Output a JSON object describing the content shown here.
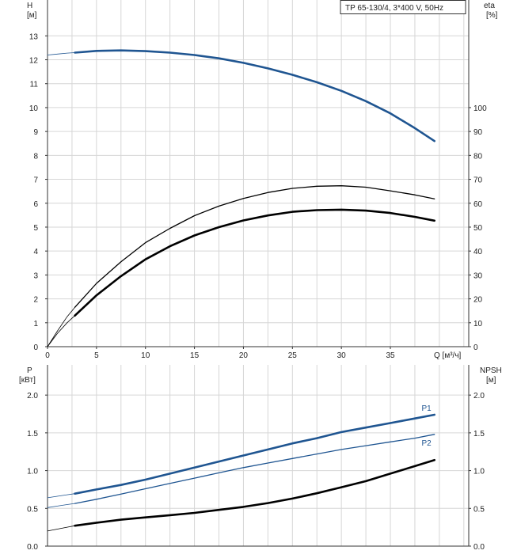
{
  "colors": {
    "blue": "#1f5591",
    "black": "#000000",
    "grid": "#d6d6d6",
    "axis": "#333333"
  },
  "chart_data": [
    {
      "type": "line",
      "title": "TP 65-130/4, 3*400 V, 50Hz",
      "xlabel": "Q [м³/ч]",
      "ylabel_top": "H",
      "ylabel_unit": "[м]",
      "y2label_top": "eta",
      "y2label_unit": "[%]",
      "xlim": [
        0,
        43
      ],
      "ylim": [
        0,
        14.5
      ],
      "y2lim": [
        0,
        145
      ],
      "x_ticks": [
        "0",
        "5",
        "10",
        "15",
        "20",
        "25",
        "30",
        "35"
      ],
      "y_ticks": [
        "0",
        "1",
        "2",
        "3",
        "4",
        "5",
        "6",
        "7",
        "8",
        "9",
        "10",
        "11",
        "12",
        "13"
      ],
      "y2_ticks": [
        "0",
        "10",
        "20",
        "30",
        "40",
        "50",
        "60",
        "70",
        "80",
        "90",
        "100"
      ],
      "grid": true,
      "series": [
        {
          "name": "",
          "color": "#1f5591",
          "axis": "left",
          "x": [
            0,
            1,
            2,
            2.8
          ],
          "y": [
            12.2,
            12.24,
            12.28,
            12.3
          ]
        },
        {
          "name": "",
          "color": "#1f5591",
          "axis": "left",
          "bold": true,
          "x": [
            2.8,
            5,
            7.5,
            10,
            12.5,
            15,
            17.5,
            20,
            22.5,
            25,
            27.5,
            30,
            32.5,
            35,
            37.5,
            39.5
          ],
          "y": [
            12.3,
            12.37,
            12.39,
            12.36,
            12.3,
            12.2,
            12.06,
            11.87,
            11.64,
            11.37,
            11.06,
            10.7,
            10.27,
            9.76,
            9.14,
            8.6
          ]
        },
        {
          "name": "",
          "color": "#000000",
          "axis": "right",
          "x": [
            0,
            1,
            2,
            2.8
          ],
          "y": [
            0,
            6.5,
            12.5,
            16.5
          ]
        },
        {
          "name": "",
          "color": "#000000",
          "axis": "right",
          "bold": false,
          "x": [
            2.8,
            5,
            7.5,
            10,
            12.5,
            15,
            17.5,
            20,
            22.5,
            25,
            27.5,
            30,
            32.5,
            35,
            37.5,
            39.5
          ],
          "y": [
            16.5,
            26.5,
            35.5,
            43.5,
            49.5,
            54.8,
            58.8,
            62,
            64.5,
            66.2,
            67.1,
            67.3,
            66.7,
            65.2,
            63.5,
            61.8
          ]
        },
        {
          "name": "",
          "color": "#000000",
          "axis": "right",
          "x": [
            0,
            1,
            2,
            2.8
          ],
          "y": [
            0,
            5.5,
            10,
            13
          ]
        },
        {
          "name": "",
          "color": "#000000",
          "axis": "right",
          "bold": true,
          "x": [
            2.8,
            5,
            7.5,
            10,
            12.5,
            15,
            17.5,
            20,
            22.5,
            25,
            27.5,
            30,
            32.5,
            35,
            37.5,
            39.5
          ],
          "y": [
            13,
            21.5,
            29.5,
            36.5,
            42,
            46.5,
            50,
            52.8,
            54.9,
            56.4,
            57.1,
            57.3,
            56.9,
            55.9,
            54.3,
            52.7
          ]
        }
      ]
    },
    {
      "type": "line",
      "ylabel_top": "P",
      "ylabel_unit": "[кВт]",
      "y2label_top": "NPSH",
      "y2label_unit": "[м]",
      "xlim": [
        0,
        43
      ],
      "ylim": [
        0,
        2.4
      ],
      "y_ticks": [
        "0.0",
        "0.5",
        "1.0",
        "1.5",
        "2.0"
      ],
      "y2_ticks": [
        "0.0",
        "0.5",
        "1.0",
        "1.5",
        "2.0"
      ],
      "grid": true,
      "series": [
        {
          "name": "",
          "color": "#1f5591",
          "axis": "left",
          "x": [
            0,
            1,
            2,
            2.8
          ],
          "y": [
            0.64,
            0.66,
            0.68,
            0.695
          ]
        },
        {
          "name": "P1",
          "color": "#1f5591",
          "axis": "left",
          "bold": true,
          "x": [
            2.8,
            5,
            7.5,
            10,
            12.5,
            15,
            17.5,
            20,
            22.5,
            25,
            27.5,
            30,
            32.5,
            35,
            37.5,
            39.5
          ],
          "y": [
            0.695,
            0.75,
            0.81,
            0.88,
            0.96,
            1.04,
            1.12,
            1.2,
            1.28,
            1.36,
            1.43,
            1.51,
            1.57,
            1.63,
            1.69,
            1.74
          ]
        },
        {
          "name": "",
          "color": "#1f5591",
          "axis": "left",
          "x": [
            0,
            1,
            2,
            2.8
          ],
          "y": [
            0.51,
            0.53,
            0.55,
            0.565
          ]
        },
        {
          "name": "P2",
          "color": "#1f5591",
          "axis": "left",
          "bold": false,
          "x": [
            2.8,
            5,
            7.5,
            10,
            12.5,
            15,
            17.5,
            20,
            22.5,
            25,
            27.5,
            30,
            32.5,
            35,
            37.5,
            39.5
          ],
          "y": [
            0.565,
            0.62,
            0.69,
            0.76,
            0.83,
            0.9,
            0.97,
            1.04,
            1.1,
            1.16,
            1.22,
            1.28,
            1.33,
            1.38,
            1.43,
            1.48
          ]
        },
        {
          "name": "",
          "color": "#000000",
          "axis": "right",
          "x": [
            0,
            1,
            2,
            2.8
          ],
          "y": [
            0.2,
            0.225,
            0.25,
            0.27
          ]
        },
        {
          "name": "",
          "color": "#000000",
          "axis": "right",
          "bold": true,
          "x": [
            2.8,
            5,
            7.5,
            10,
            12.5,
            15,
            17.5,
            20,
            22.5,
            25,
            27.5,
            30,
            32.5,
            35,
            37.5,
            39.5
          ],
          "y": [
            0.27,
            0.31,
            0.35,
            0.38,
            0.41,
            0.44,
            0.48,
            0.52,
            0.57,
            0.63,
            0.7,
            0.78,
            0.86,
            0.96,
            1.06,
            1.14
          ]
        }
      ]
    }
  ]
}
